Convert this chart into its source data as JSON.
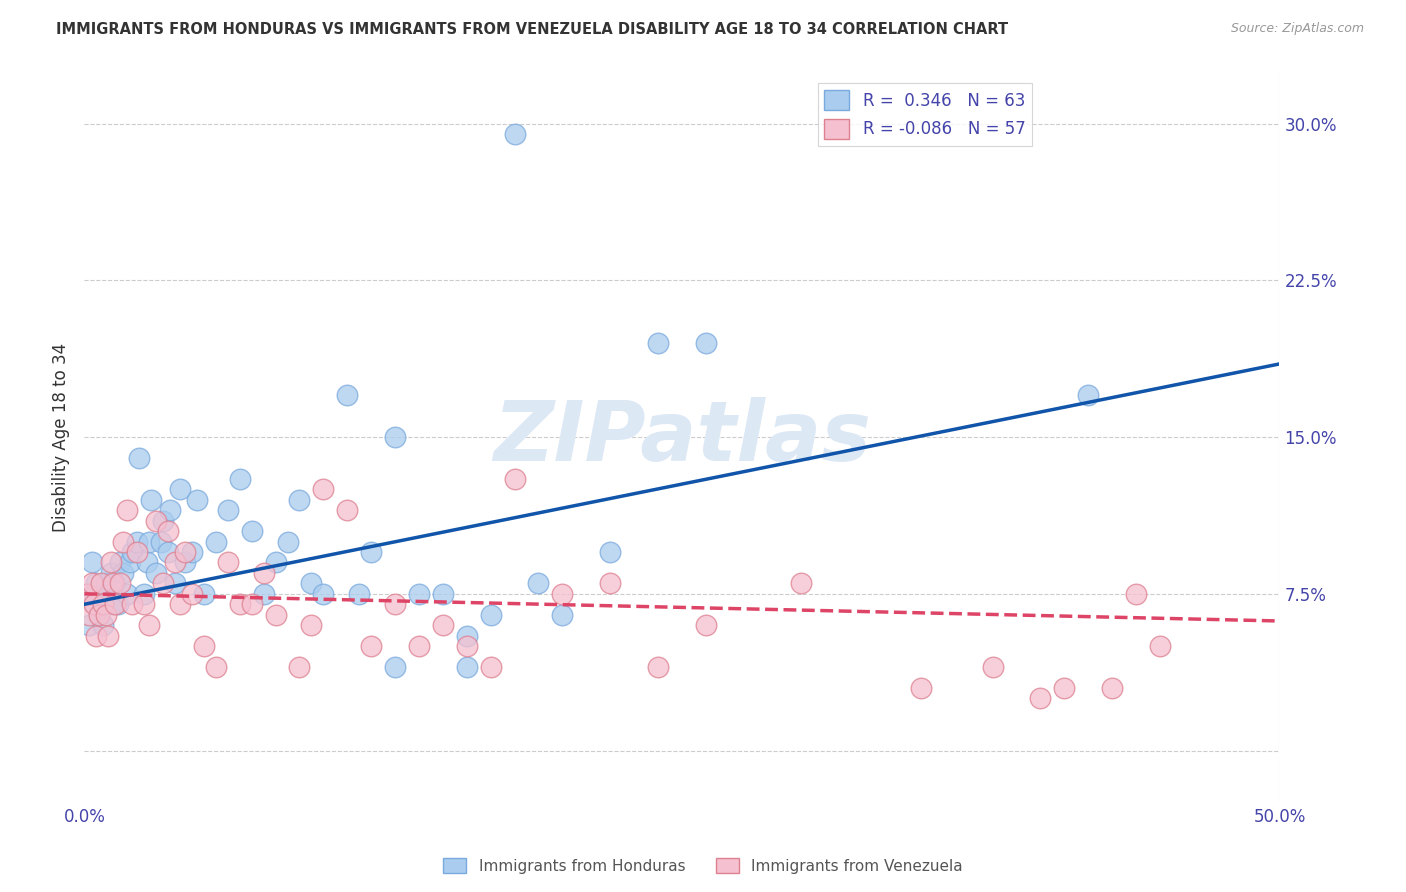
{
  "title": "IMMIGRANTS FROM HONDURAS VS IMMIGRANTS FROM VENEZUELA DISABILITY AGE 18 TO 34 CORRELATION CHART",
  "source": "Source: ZipAtlas.com",
  "ylabel": "Disability Age 18 to 34",
  "xlim": [
    0.0,
    0.5
  ],
  "ylim": [
    -0.025,
    0.325
  ],
  "yticks": [
    0.0,
    0.075,
    0.15,
    0.225,
    0.3
  ],
  "ytick_labels": [
    "",
    "7.5%",
    "15.0%",
    "22.5%",
    "30.0%"
  ],
  "xtick_labels": [
    "0.0%",
    "",
    "",
    "",
    "",
    "50.0%"
  ],
  "watermark": "ZIPatlas",
  "series": [
    {
      "name": "Immigrants from Honduras",
      "R": 0.346,
      "N": 63,
      "marker_color": "#aaccee",
      "marker_edge_color": "#7aaadd",
      "line_color": "#1155aa",
      "line_style": "-",
      "x": [
        0.001,
        0.002,
        0.003,
        0.004,
        0.005,
        0.006,
        0.007,
        0.008,
        0.009,
        0.01,
        0.011,
        0.012,
        0.013,
        0.014,
        0.015,
        0.016,
        0.018,
        0.019,
        0.02,
        0.022,
        0.023,
        0.025,
        0.026,
        0.027,
        0.028,
        0.03,
        0.032,
        0.033,
        0.035,
        0.036,
        0.038,
        0.04,
        0.042,
        0.045,
        0.047,
        0.05,
        0.055,
        0.06,
        0.065,
        0.07,
        0.075,
        0.08,
        0.085,
        0.09,
        0.095,
        0.1,
        0.11,
        0.115,
        0.12,
        0.13,
        0.14,
        0.15,
        0.16,
        0.17,
        0.18,
        0.19,
        0.2,
        0.22,
        0.24,
        0.26,
        0.13,
        0.42,
        0.16
      ],
      "y": [
        0.075,
        0.06,
        0.09,
        0.07,
        0.08,
        0.065,
        0.075,
        0.06,
        0.08,
        0.075,
        0.085,
        0.07,
        0.08,
        0.07,
        0.09,
        0.085,
        0.075,
        0.09,
        0.095,
        0.1,
        0.14,
        0.075,
        0.09,
        0.1,
        0.12,
        0.085,
        0.1,
        0.11,
        0.095,
        0.115,
        0.08,
        0.125,
        0.09,
        0.095,
        0.12,
        0.075,
        0.1,
        0.115,
        0.13,
        0.105,
        0.075,
        0.09,
        0.1,
        0.12,
        0.08,
        0.075,
        0.17,
        0.075,
        0.095,
        0.15,
        0.075,
        0.075,
        0.055,
        0.065,
        0.295,
        0.08,
        0.065,
        0.095,
        0.195,
        0.195,
        0.04,
        0.17,
        0.04
      ],
      "trend_x": [
        0.0,
        0.5
      ],
      "trend_y": [
        0.07,
        0.185
      ]
    },
    {
      "name": "Immigrants from Venezuela",
      "R": -0.086,
      "N": 57,
      "marker_color": "#f5c0d0",
      "marker_edge_color": "#dd8090",
      "line_color": "#dd4466",
      "line_style": "--",
      "x": [
        0.001,
        0.002,
        0.003,
        0.004,
        0.005,
        0.006,
        0.007,
        0.008,
        0.009,
        0.01,
        0.011,
        0.012,
        0.013,
        0.015,
        0.016,
        0.018,
        0.02,
        0.022,
        0.025,
        0.027,
        0.03,
        0.033,
        0.035,
        0.038,
        0.04,
        0.042,
        0.045,
        0.05,
        0.055,
        0.06,
        0.065,
        0.07,
        0.075,
        0.08,
        0.09,
        0.095,
        0.1,
        0.11,
        0.12,
        0.13,
        0.14,
        0.15,
        0.16,
        0.17,
        0.18,
        0.2,
        0.22,
        0.24,
        0.26,
        0.3,
        0.35,
        0.38,
        0.4,
        0.41,
        0.43,
        0.44,
        0.45
      ],
      "y": [
        0.075,
        0.065,
        0.08,
        0.07,
        0.055,
        0.065,
        0.08,
        0.07,
        0.065,
        0.055,
        0.09,
        0.08,
        0.07,
        0.08,
        0.1,
        0.115,
        0.07,
        0.095,
        0.07,
        0.06,
        0.11,
        0.08,
        0.105,
        0.09,
        0.07,
        0.095,
        0.075,
        0.05,
        0.04,
        0.09,
        0.07,
        0.07,
        0.085,
        0.065,
        0.04,
        0.06,
        0.125,
        0.115,
        0.05,
        0.07,
        0.05,
        0.06,
        0.05,
        0.04,
        0.13,
        0.075,
        0.08,
        0.04,
        0.06,
        0.08,
        0.03,
        0.04,
        0.025,
        0.03,
        0.03,
        0.075,
        0.05
      ],
      "trend_x": [
        0.0,
        0.5
      ],
      "trend_y": [
        0.075,
        0.062
      ]
    }
  ],
  "background_color": "#ffffff",
  "grid_color": "#cccccc",
  "title_color": "#333333",
  "axis_label_color": "#4444aa",
  "watermark_color": "#dde8f5",
  "watermark_fontsize": 60,
  "legend_blue_color": "#4488cc",
  "legend_pink_color": "#ee6688"
}
